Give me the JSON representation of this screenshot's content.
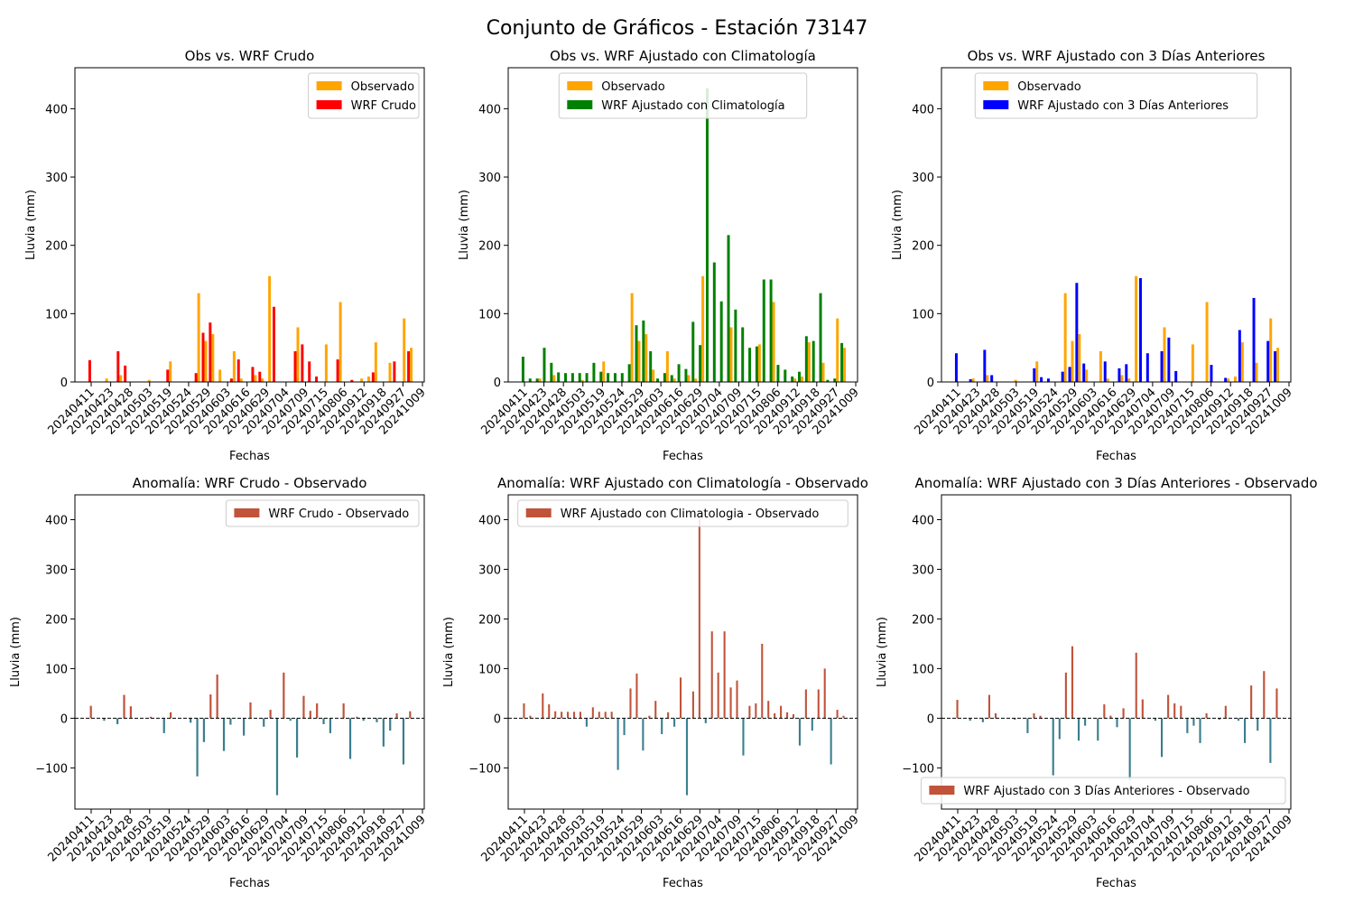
{
  "figure": {
    "title": "Conjunto de Gráficos - Estación 73147"
  },
  "colors": {
    "observado": "#FFA500",
    "wrf_crudo": "#FF0000",
    "wrf_clim": "#008000",
    "wrf_3dias": "#0000FF",
    "anom_pos": "#C0533A",
    "anom_neg": "#3A7E8E"
  },
  "chart_data": [
    {
      "type": "bar",
      "title": "Obs vs. WRF Crudo",
      "xlabel": "Fechas",
      "ylabel": "Lluvia (mm)",
      "ylim": [
        0,
        460
      ],
      "yticks": [
        0,
        100,
        200,
        300,
        400
      ],
      "xticklabels": [
        "20240411",
        "20240423",
        "20240428",
        "20240503",
        "20240519",
        "20240524",
        "20240529",
        "20240603",
        "20240616",
        "20240629",
        "20240704",
        "20240709",
        "20240715",
        "20240806",
        "20240912",
        "20240918",
        "20240927",
        "20241009"
      ],
      "legend": {
        "location": "upper-right",
        "entries": [
          "Observado",
          "WRF Crudo"
        ]
      },
      "series": [
        {
          "name": "Observado",
          "color": "#FFA500",
          "values": [
            0,
            0,
            5,
            0,
            10,
            0,
            0,
            0,
            3,
            0,
            0,
            30,
            0,
            0,
            0,
            130,
            60,
            70,
            18,
            0,
            45,
            5,
            0,
            10,
            5,
            155,
            0,
            0,
            0,
            80,
            0,
            0,
            0,
            55,
            0,
            117,
            0,
            0,
            5,
            8,
            58,
            0,
            28,
            0,
            93,
            50
          ]
        },
        {
          "name": "WRF Crudo",
          "color": "#FF0000",
          "values": [
            32,
            0,
            0,
            0,
            45,
            24,
            0,
            0,
            0,
            0,
            0,
            18,
            0,
            0,
            0,
            13,
            72,
            87,
            0,
            0,
            5,
            33,
            0,
            22,
            15,
            0,
            110,
            0,
            0,
            45,
            55,
            30,
            8,
            0,
            0,
            33,
            0,
            3,
            0,
            0,
            14,
            0,
            0,
            30,
            0,
            45
          ]
        }
      ]
    },
    {
      "type": "bar",
      "title": "Obs vs. WRF Ajustado con Climatología",
      "xlabel": "Fechas",
      "ylabel": "Lluvia (mm)",
      "ylim": [
        0,
        460
      ],
      "yticks": [
        0,
        100,
        200,
        300,
        400
      ],
      "xticklabels": [
        "20240411",
        "20240423",
        "20240428",
        "20240503",
        "20240519",
        "20240524",
        "20240529",
        "20240603",
        "20240616",
        "20240629",
        "20240704",
        "20240709",
        "20240715",
        "20240806",
        "20240912",
        "20240918",
        "20240927",
        "20241009"
      ],
      "legend": {
        "location": "upper-center",
        "entries": [
          "Observado",
          "WRF Ajustado con Climatología"
        ]
      },
      "series": [
        {
          "name": "Observado",
          "color": "#FFA500",
          "values": [
            0,
            0,
            5,
            0,
            10,
            0,
            0,
            0,
            3,
            0,
            0,
            30,
            0,
            0,
            0,
            130,
            60,
            70,
            18,
            0,
            45,
            5,
            0,
            10,
            5,
            155,
            0,
            0,
            0,
            80,
            0,
            0,
            0,
            55,
            0,
            117,
            0,
            0,
            5,
            8,
            58,
            0,
            28,
            0,
            93,
            50
          ]
        },
        {
          "name": "WRF Ajustado con Climatología",
          "color": "#008000",
          "values": [
            37,
            5,
            5,
            50,
            28,
            14,
            13,
            13,
            13,
            13,
            28,
            15,
            13,
            13,
            13,
            26,
            83,
            90,
            45,
            5,
            13,
            10,
            26,
            19,
            88,
            54,
            430,
            175,
            118,
            215,
            106,
            80,
            50,
            52,
            150,
            150,
            25,
            18,
            8,
            15,
            67,
            60,
            130,
            3,
            5,
            57
          ]
        }
      ]
    },
    {
      "type": "bar",
      "title": "Obs vs. WRF Ajustado con 3 Días Anteriores",
      "xlabel": "Fechas",
      "ylabel": "Lluvia (mm)",
      "ylim": [
        0,
        460
      ],
      "yticks": [
        0,
        100,
        200,
        300,
        400
      ],
      "xticklabels": [
        "20240411",
        "20240423",
        "20240428",
        "20240503",
        "20240519",
        "20240524",
        "20240529",
        "20240603",
        "20240616",
        "20240629",
        "20240704",
        "20240709",
        "20240715",
        "20240806",
        "20240912",
        "20240918",
        "20240927",
        "20241009"
      ],
      "legend": {
        "location": "upper-center",
        "entries": [
          "Observado",
          "WRF Ajustado con 3 Días Anteriores"
        ]
      },
      "series": [
        {
          "name": "Observado",
          "color": "#FFA500",
          "values": [
            0,
            0,
            5,
            0,
            10,
            0,
            0,
            0,
            3,
            0,
            0,
            30,
            0,
            0,
            0,
            130,
            60,
            70,
            18,
            0,
            45,
            5,
            0,
            10,
            5,
            155,
            0,
            0,
            0,
            80,
            0,
            0,
            0,
            55,
            0,
            117,
            0,
            0,
            5,
            8,
            58,
            0,
            28,
            0,
            93,
            50
          ]
        },
        {
          "name": "WRF Ajustado con 3 Días Anteriores",
          "color": "#0000FF",
          "values": [
            42,
            0,
            4,
            0,
            47,
            10,
            0,
            0,
            0,
            0,
            0,
            20,
            7,
            5,
            0,
            15,
            22,
            145,
            27,
            0,
            0,
            30,
            0,
            20,
            26,
            0,
            152,
            42,
            0,
            45,
            65,
            16,
            0,
            0,
            0,
            0,
            25,
            0,
            6,
            0,
            76,
            0,
            123,
            0,
            60,
            45
          ]
        }
      ]
    },
    {
      "type": "bar",
      "title": "Anomalía: WRF Crudo - Observado",
      "xlabel": "Fechas",
      "ylabel": "Lluvia (mm)",
      "ylim": [
        -183,
        450
      ],
      "yticks": [
        -100,
        0,
        100,
        200,
        300,
        400
      ],
      "xticklabels": [
        "20240411",
        "20240423",
        "20240428",
        "20240503",
        "20240519",
        "20240524",
        "20240529",
        "20240603",
        "20240616",
        "20240629",
        "20240704",
        "20240709",
        "20240715",
        "20240806",
        "20240912",
        "20240918",
        "20240927",
        "20241009"
      ],
      "legend": {
        "location": "upper-right",
        "entries": [
          "WRF Crudo - Observado"
        ]
      },
      "series": [
        {
          "name": "WRF Crudo - Observado",
          "color": "#C0533A",
          "values": [
            25,
            0,
            -5,
            0,
            -12,
            47,
            24,
            0,
            0,
            3,
            0,
            -30,
            12,
            0,
            0,
            -9,
            -117,
            -48,
            48,
            88,
            -66,
            -13,
            0,
            -35,
            32,
            0,
            -17,
            17,
            -155,
            92,
            -5,
            -79,
            45,
            15,
            30,
            -12,
            -30,
            0,
            30,
            -82,
            3,
            -5,
            0,
            -8,
            -57,
            -25,
            10,
            -93,
            14
          ]
        }
      ]
    },
    {
      "type": "bar",
      "title": "Anomalía: WRF Ajustado con Climatología - Observado",
      "xlabel": "Fechas",
      "ylabel": "Lluvia (mm)",
      "ylim": [
        -183,
        450
      ],
      "yticks": [
        -100,
        0,
        100,
        200,
        300,
        400
      ],
      "xticklabels": [
        "20240411",
        "20240423",
        "20240428",
        "20240503",
        "20240519",
        "20240524",
        "20240529",
        "20240603",
        "20240616",
        "20240629",
        "20240704",
        "20240709",
        "20240715",
        "20240806",
        "20240912",
        "20240918",
        "20240927",
        "20241009"
      ],
      "legend": {
        "location": "upper-center",
        "entries": [
          "WRF Ajustado con Climatologia - Observado"
        ]
      },
      "series": [
        {
          "name": "WRF Ajustado con Climatologia - Observado",
          "color": "#C0533A",
          "values": [
            30,
            5,
            0,
            50,
            28,
            14,
            13,
            13,
            13,
            13,
            -17,
            22,
            13,
            13,
            13,
            -104,
            -34,
            60,
            90,
            -65,
            5,
            35,
            -32,
            12,
            -17,
            82,
            -155,
            54,
            400,
            -10,
            175,
            92,
            175,
            62,
            76,
            -75,
            25,
            30,
            150,
            35,
            10,
            25,
            12,
            8,
            -55,
            58,
            -25,
            58,
            100,
            -93,
            17,
            5
          ]
        }
      ]
    },
    {
      "type": "bar",
      "title": "Anomalía: WRF Ajustado con 3 Días Anteriores - Observado",
      "xlabel": "Fechas",
      "ylabel": "Lluvia (mm)",
      "ylim": [
        -183,
        450
      ],
      "yticks": [
        -100,
        0,
        100,
        200,
        300,
        400
      ],
      "xticklabels": [
        "20240411",
        "20240423",
        "20240428",
        "20240503",
        "20240519",
        "20240524",
        "20240529",
        "20240603",
        "20240616",
        "20240629",
        "20240704",
        "20240709",
        "20240715",
        "20240806",
        "20240912",
        "20240918",
        "20240927",
        "20241009"
      ],
      "legend": {
        "location": "lower-right",
        "entries": [
          "WRF Ajustado con 3 Días Anteriores - Observado"
        ]
      },
      "series": [
        {
          "name": "WRF Ajustado con 3 Días Anteriores - Observado",
          "color": "#C0533A",
          "values": [
            37,
            0,
            -5,
            0,
            -8,
            47,
            10,
            0,
            0,
            -3,
            0,
            -30,
            10,
            5,
            0,
            -115,
            -42,
            92,
            145,
            -45,
            -15,
            0,
            -45,
            28,
            5,
            -18,
            20,
            -125,
            132,
            38,
            0,
            -5,
            -78,
            47,
            30,
            25,
            -30,
            -15,
            -50,
            10,
            0,
            -3,
            25,
            0,
            -5,
            -50,
            66,
            -25,
            95,
            -90,
            60
          ]
        }
      ]
    }
  ]
}
